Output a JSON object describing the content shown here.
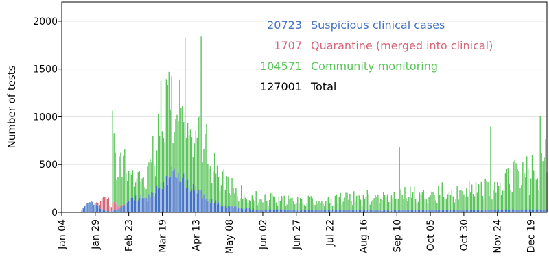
{
  "chart_data": {
    "type": "bar",
    "stacked": true,
    "ylabel": "Number of tests",
    "ylim": [
      0,
      2200
    ],
    "yticks": [
      0,
      500,
      1000,
      1500,
      2000
    ],
    "xlim": [
      "2020-01-04",
      "2020-12-31"
    ],
    "xticks": [
      "Jan 04",
      "Jan 29",
      "Feb 23",
      "Mar 19",
      "Apr 13",
      "May 08",
      "Jun 02",
      "Jun 27",
      "Jul 22",
      "Aug 16",
      "Sep 10",
      "Oct 05",
      "Oct 30",
      "Nov 24",
      "Dec 19"
    ],
    "grid": true,
    "legend_position": "top-center",
    "legend": [
      {
        "count": "20723",
        "label": "Suspicious clinical cases",
        "color": "#4472c4"
      },
      {
        "count": "1707",
        "label": "Quarantine (merged into clinical)",
        "color": "#d4677a"
      },
      {
        "count": "104571",
        "label": "Community monitoring",
        "color": "#5cc55c"
      },
      {
        "count": "127001",
        "label": "Total",
        "color": "#000000"
      }
    ],
    "series": [
      {
        "name": "Suspicious clinical cases",
        "color": "#4472c4",
        "points": [
          [
            "2020-01-18",
            5
          ],
          [
            "2020-01-20",
            40
          ],
          [
            "2020-01-22",
            80
          ],
          [
            "2020-01-24",
            110
          ],
          [
            "2020-01-26",
            100
          ],
          [
            "2020-01-28",
            90
          ],
          [
            "2020-01-30",
            70
          ],
          [
            "2020-02-01",
            50
          ],
          [
            "2020-02-03",
            30
          ],
          [
            "2020-02-05",
            20
          ],
          [
            "2020-02-10",
            10
          ],
          [
            "2020-02-15",
            40
          ],
          [
            "2020-02-18",
            60
          ],
          [
            "2020-02-23",
            120
          ],
          [
            "2020-02-28",
            160
          ],
          [
            "2020-03-05",
            150
          ],
          [
            "2020-03-10",
            160
          ],
          [
            "2020-03-14",
            220
          ],
          [
            "2020-03-19",
            300
          ],
          [
            "2020-03-24",
            360
          ],
          [
            "2020-03-29",
            440
          ],
          [
            "2020-04-02",
            380
          ],
          [
            "2020-04-07",
            300
          ],
          [
            "2020-04-13",
            230
          ],
          [
            "2020-04-18",
            180
          ],
          [
            "2020-04-25",
            120
          ],
          [
            "2020-05-02",
            80
          ],
          [
            "2020-05-08",
            60
          ],
          [
            "2020-05-20",
            40
          ],
          [
            "2020-06-02",
            30
          ],
          [
            "2020-07-01",
            25
          ],
          [
            "2020-08-01",
            25
          ],
          [
            "2020-09-01",
            25
          ],
          [
            "2020-10-01",
            25
          ],
          [
            "2020-11-01",
            25
          ],
          [
            "2020-12-01",
            28
          ],
          [
            "2020-12-31",
            30
          ]
        ]
      },
      {
        "name": "Quarantine (merged into clinical)",
        "color": "#d4677a",
        "points": [
          [
            "2020-01-28",
            0
          ],
          [
            "2020-02-01",
            50
          ],
          [
            "2020-02-04",
            110
          ],
          [
            "2020-02-06",
            120
          ],
          [
            "2020-02-09",
            90
          ],
          [
            "2020-02-12",
            60
          ],
          [
            "2020-02-15",
            30
          ],
          [
            "2020-02-18",
            10
          ],
          [
            "2020-02-22",
            0
          ]
        ]
      },
      {
        "name": "Community monitoring",
        "color": "#5cc55c",
        "points": [
          [
            "2020-02-10",
            0
          ],
          [
            "2020-02-11",
            700
          ],
          [
            "2020-02-15",
            450
          ],
          [
            "2020-02-20",
            420
          ],
          [
            "2020-02-25",
            250
          ],
          [
            "2020-03-01",
            220
          ],
          [
            "2020-03-08",
            250
          ],
          [
            "2020-03-14",
            500
          ],
          [
            "2020-03-19",
            700
          ],
          [
            "2020-03-22",
            900
          ],
          [
            "2020-03-26",
            700
          ],
          [
            "2020-03-30",
            750
          ],
          [
            "2020-04-03",
            1000
          ],
          [
            "2020-04-07",
            900
          ],
          [
            "2020-04-11",
            750
          ],
          [
            "2020-04-13",
            800
          ],
          [
            "2020-04-18",
            700
          ],
          [
            "2020-04-25",
            450
          ],
          [
            "2020-05-02",
            320
          ],
          [
            "2020-05-08",
            230
          ],
          [
            "2020-05-15",
            170
          ],
          [
            "2020-05-25",
            150
          ],
          [
            "2020-06-02",
            130
          ],
          [
            "2020-06-15",
            110
          ],
          [
            "2020-06-27",
            100
          ],
          [
            "2020-07-22",
            120
          ],
          [
            "2020-08-16",
            140
          ],
          [
            "2020-09-10",
            170
          ],
          [
            "2020-10-05",
            200
          ],
          [
            "2020-10-30",
            210
          ],
          [
            "2020-11-24",
            260
          ],
          [
            "2020-12-05",
            380
          ],
          [
            "2020-12-19",
            450
          ],
          [
            "2020-12-31",
            520
          ]
        ]
      }
    ],
    "peaks": [
      {
        "series": "Community monitoring",
        "date": "2020-04-05",
        "total": 1830
      },
      {
        "series": "Community monitoring",
        "date": "2020-04-17",
        "total": 1840
      },
      {
        "series": "Community monitoring",
        "date": "2020-03-18",
        "total": 1380
      },
      {
        "series": "Community monitoring",
        "date": "2020-02-12",
        "total": 830
      },
      {
        "series": "Community monitoring",
        "date": "2020-09-12",
        "total": 680
      },
      {
        "series": "Community monitoring",
        "date": "2020-11-19",
        "total": 900
      },
      {
        "series": "Community monitoring",
        "date": "2020-12-26",
        "total": 1010
      }
    ]
  }
}
